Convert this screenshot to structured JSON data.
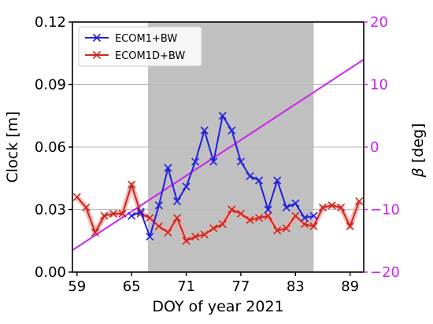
{
  "chart_data": {
    "type": "line",
    "xlabel": "DOY of year 2021",
    "ylabel": "Clock [m]",
    "ylabel_right_symbol": "β",
    "ylabel_right_unit": " [deg]",
    "xlim": [
      58.5,
      90.5
    ],
    "ylim": [
      0,
      0.12
    ],
    "ylim_right": [
      -20,
      20
    ],
    "x_ticks": [
      59,
      65,
      71,
      77,
      83,
      89
    ],
    "x_tick_labels": [
      "59",
      "65",
      "71",
      "77",
      "83",
      "89"
    ],
    "y_ticks": [
      0,
      0.03,
      0.06,
      0.09,
      0.12
    ],
    "y_tick_labels": [
      "0.00",
      "0.03",
      "0.06",
      "0.09",
      "0.12"
    ],
    "y_right_ticks": [
      -20,
      -10,
      0,
      10,
      20
    ],
    "y_right_tick_labels": [
      "−20",
      "−10",
      "0",
      "10",
      "20"
    ],
    "grid": "horizontal",
    "legend_position": "top-left",
    "shaded_span": {
      "x": [
        66.8,
        85.0
      ],
      "color": "#c0c0c0"
    },
    "colors": {
      "ecom1": "#1f1fe0",
      "ecom1d": "#c8281e",
      "ecom1d_band": "#f4a8a8",
      "beta": "#cc22ee",
      "right_axis": "#cc22ee",
      "grid": "#b8b8b8"
    },
    "series": [
      {
        "name": "ECOM1+BW",
        "color": "#1f1fe0",
        "x": [
          65,
          66,
          67,
          68,
          69,
          70,
          71,
          72,
          73,
          74,
          75,
          76,
          77,
          78,
          79,
          80,
          81,
          82,
          83,
          84,
          85
        ],
        "values": [
          0.027,
          0.029,
          0.017,
          0.032,
          0.05,
          0.034,
          0.041,
          0.053,
          0.068,
          0.053,
          0.075,
          0.068,
          0.053,
          0.046,
          0.044,
          0.03,
          0.044,
          0.031,
          0.033,
          0.026,
          0.027
        ]
      },
      {
        "name": "ECOM1D+BW",
        "color": "#c8281e",
        "x": [
          59,
          60,
          61,
          62,
          63,
          64,
          65,
          66,
          67,
          68,
          69,
          70,
          71,
          72,
          73,
          74,
          75,
          76,
          77,
          78,
          79,
          80,
          81,
          82,
          83,
          84,
          85,
          86,
          87,
          88,
          89,
          90
        ],
        "values": [
          0.036,
          0.031,
          0.019,
          0.027,
          0.028,
          0.028,
          0.042,
          0.028,
          0.026,
          0.022,
          0.019,
          0.026,
          0.015,
          0.017,
          0.018,
          0.021,
          0.023,
          0.03,
          0.028,
          0.025,
          0.026,
          0.027,
          0.02,
          0.021,
          0.027,
          0.023,
          0.022,
          0.031,
          0.032,
          0.031,
          0.022,
          0.034
        ]
      },
      {
        "name": "β",
        "axis": "right",
        "color": "#cc22ee",
        "x": [
          58.5,
          90.5
        ],
        "values": [
          -16.5,
          14.0
        ]
      }
    ]
  }
}
